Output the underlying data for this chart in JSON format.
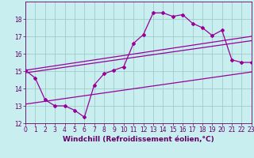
{
  "xlabel": "Windchill (Refroidissement éolien,°C)",
  "background_color": "#c8eef0",
  "grid_color": "#a0ccc8",
  "line_color": "#990099",
  "xlim": [
    0,
    23
  ],
  "ylim": [
    12,
    19
  ],
  "xticks": [
    0,
    1,
    2,
    3,
    4,
    5,
    6,
    7,
    8,
    9,
    10,
    11,
    12,
    13,
    14,
    15,
    16,
    17,
    18,
    19,
    20,
    21,
    22,
    23
  ],
  "yticks": [
    12,
    13,
    14,
    15,
    16,
    17,
    18
  ],
  "series1_x": [
    0,
    1,
    2,
    3,
    4,
    5,
    6,
    7,
    8,
    9,
    10,
    11,
    12,
    13,
    14,
    15,
    16,
    17,
    18,
    19,
    20,
    21,
    22,
    23
  ],
  "series1_y": [
    15.05,
    14.6,
    13.35,
    13.0,
    13.0,
    12.75,
    12.35,
    14.2,
    14.85,
    15.05,
    15.25,
    16.6,
    17.1,
    18.35,
    18.35,
    18.15,
    18.25,
    17.75,
    17.5,
    17.05,
    17.35,
    15.65,
    15.5,
    15.5
  ],
  "series2_x": [
    0,
    23
  ],
  "series2_y": [
    13.1,
    14.95
  ],
  "series3_x": [
    0,
    23
  ],
  "series3_y": [
    14.9,
    16.75
  ],
  "series4_x": [
    0,
    23
  ],
  "series4_y": [
    15.05,
    17.0
  ],
  "font_color": "#660066",
  "tick_fontsize": 5.5,
  "label_fontsize": 6.5
}
